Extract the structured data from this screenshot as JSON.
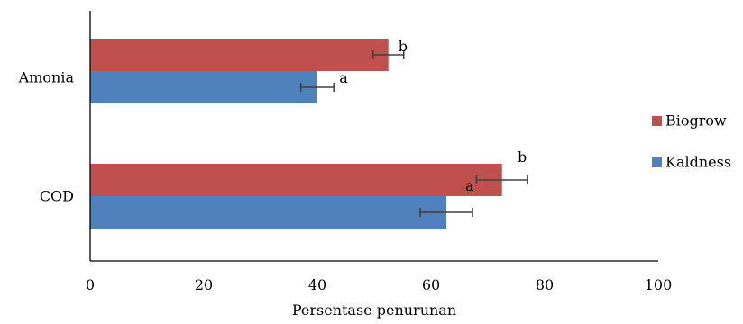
{
  "chart_data": {
    "type": "bar",
    "orientation": "horizontal",
    "categories": [
      "Amonia",
      "COD"
    ],
    "series": [
      {
        "name": "Biogrow",
        "color": "#C0504D",
        "values": [
          52.5,
          72.5
        ],
        "error": [
          2.7,
          4.5
        ],
        "labels": [
          "b",
          "b"
        ]
      },
      {
        "name": "Kaldness",
        "color": "#4F81BD",
        "values": [
          40,
          62.7
        ],
        "error": [
          2.9,
          4.6
        ],
        "labels": [
          "a",
          "a"
        ]
      }
    ],
    "xlabel": "Persentase penurunan",
    "ylabel": "",
    "xlim": [
      0,
      100
    ],
    "xticks": [
      "0",
      "20",
      "40",
      "60",
      "80",
      "100"
    ],
    "grid": false,
    "legend_position": "right"
  }
}
